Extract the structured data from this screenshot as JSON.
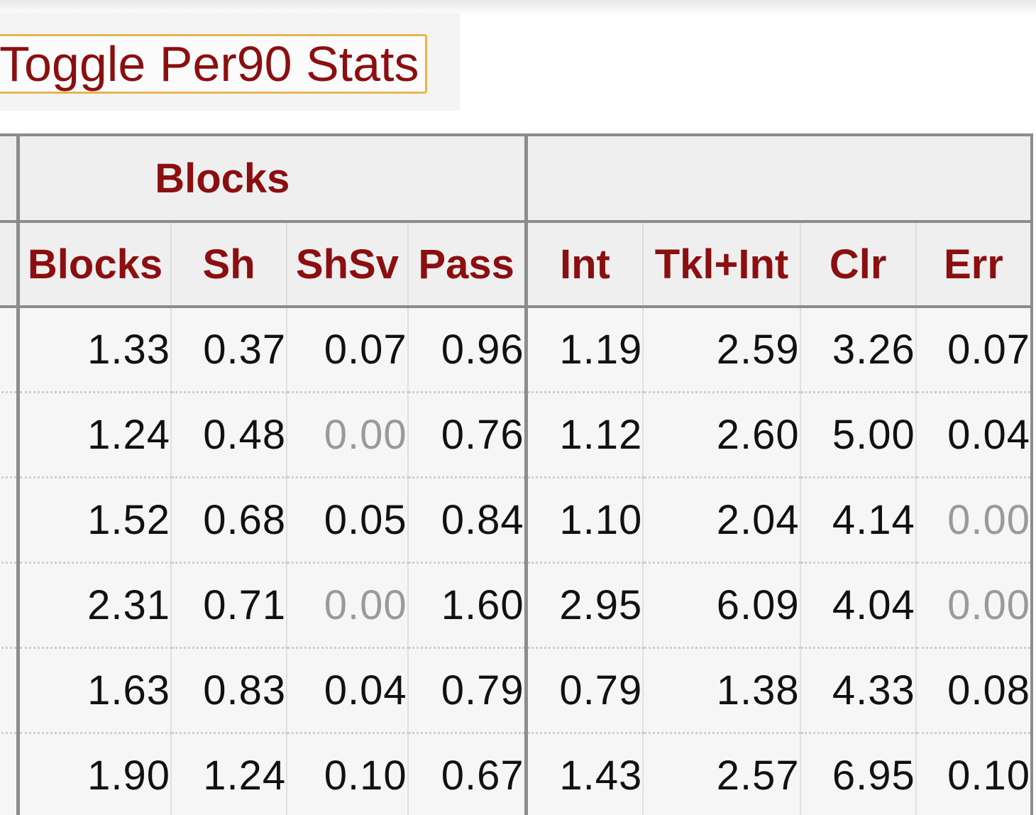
{
  "toggle": {
    "label": "Toggle Per90 Stats"
  },
  "table": {
    "group_headers": [
      {
        "label": ""
      },
      {
        "label": "Blocks"
      },
      {
        "label": ""
      }
    ],
    "columns": [
      "Blocks",
      "Sh",
      "ShSv",
      "Pass",
      "Int",
      "Tkl+Int",
      "Clr",
      "Err"
    ],
    "rows": [
      [
        "1.33",
        "0.37",
        "0.07",
        "0.96",
        "1.19",
        "2.59",
        "3.26",
        "0.07"
      ],
      [
        "1.24",
        "0.48",
        "0.00",
        "0.76",
        "1.12",
        "2.60",
        "5.00",
        "0.04"
      ],
      [
        "1.52",
        "0.68",
        "0.05",
        "0.84",
        "1.10",
        "2.04",
        "4.14",
        "0.00"
      ],
      [
        "2.31",
        "0.71",
        "0.00",
        "1.60",
        "2.95",
        "6.09",
        "4.04",
        "0.00"
      ],
      [
        "1.63",
        "0.83",
        "0.04",
        "0.79",
        "0.79",
        "1.38",
        "4.33",
        "0.08"
      ],
      [
        "1.90",
        "1.24",
        "0.10",
        "0.67",
        "1.43",
        "2.57",
        "6.95",
        "0.10"
      ]
    ]
  },
  "colors": {
    "header_text": "#8b0f10",
    "toggle_border": "#e9b44c",
    "zero_value": "#9a9a9a"
  }
}
